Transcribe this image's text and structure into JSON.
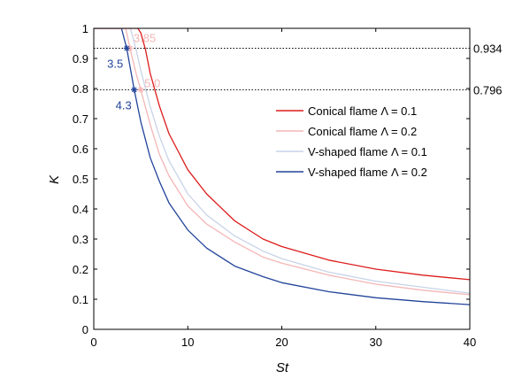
{
  "chart_data": {
    "type": "line",
    "xlabel": "St",
    "ylabel": "K",
    "xlim": [
      0,
      40
    ],
    "ylim": [
      0,
      1
    ],
    "x_ticks": [
      "0",
      "10",
      "20",
      "30",
      "40"
    ],
    "y_ticks": [
      "0",
      "0.1",
      "0.2",
      "0.3",
      "0.4",
      "0.5",
      "0.6",
      "0.7",
      "0.8",
      "0.9",
      "1"
    ],
    "reference_lines": [
      {
        "y": 0.934,
        "label": "0.934"
      },
      {
        "y": 0.796,
        "label": "0.796"
      }
    ],
    "legend_position": "right",
    "series": [
      {
        "name": "Conical flame Λ = 0.1",
        "color": "#dd1c1c",
        "x": [
          0,
          4.7,
          5,
          5.5,
          6,
          7,
          8,
          10,
          12,
          15,
          18,
          20,
          25,
          30,
          35,
          40
        ],
        "y": [
          1.0,
          1.0,
          0.985,
          0.93,
          0.85,
          0.74,
          0.65,
          0.53,
          0.45,
          0.36,
          0.3,
          0.275,
          0.23,
          0.2,
          0.18,
          0.165
        ]
      },
      {
        "name": "Conical flame Λ = 0.2",
        "color": "#f4b6b6",
        "x": [
          0,
          3.4,
          3.85,
          4.5,
          5,
          6,
          7,
          8,
          10,
          12,
          15,
          18,
          20,
          25,
          30,
          35,
          40
        ],
        "y": [
          1.0,
          1.0,
          0.934,
          0.85,
          0.796,
          0.68,
          0.58,
          0.51,
          0.41,
          0.35,
          0.29,
          0.24,
          0.22,
          0.18,
          0.15,
          0.13,
          0.115
        ]
      },
      {
        "name": "V-shaped flame Λ = 0.1",
        "color": "#c8d4e8",
        "x": [
          0,
          3.9,
          4.5,
          5,
          6,
          7,
          8,
          10,
          12,
          15,
          18,
          20,
          25,
          30,
          35,
          40
        ],
        "y": [
          1.0,
          1.0,
          0.93,
          0.86,
          0.74,
          0.64,
          0.56,
          0.45,
          0.38,
          0.31,
          0.26,
          0.235,
          0.19,
          0.16,
          0.14,
          0.12
        ]
      },
      {
        "name": "V-shaped flame Λ = 0.2",
        "color": "#22449a",
        "x": [
          0,
          2.95,
          3.5,
          4.3,
          5,
          6,
          7,
          8,
          10,
          12,
          15,
          18,
          20,
          25,
          30,
          35,
          40
        ],
        "y": [
          1.0,
          1.0,
          0.934,
          0.796,
          0.69,
          0.57,
          0.49,
          0.42,
          0.33,
          0.27,
          0.21,
          0.175,
          0.155,
          0.125,
          0.105,
          0.092,
          0.082
        ]
      }
    ],
    "annotations": [
      {
        "text": "3.85",
        "x": 3.85,
        "y": 0.934,
        "color": "#f4b6b6"
      },
      {
        "text": "3.5",
        "x": 3.5,
        "y": 0.934,
        "color": "#22449a"
      },
      {
        "text": "5.0",
        "x": 5.0,
        "y": 0.796,
        "color": "#f4b6b6"
      },
      {
        "text": "4.3",
        "x": 4.3,
        "y": 0.796,
        "color": "#22449a"
      }
    ],
    "grid": false
  }
}
